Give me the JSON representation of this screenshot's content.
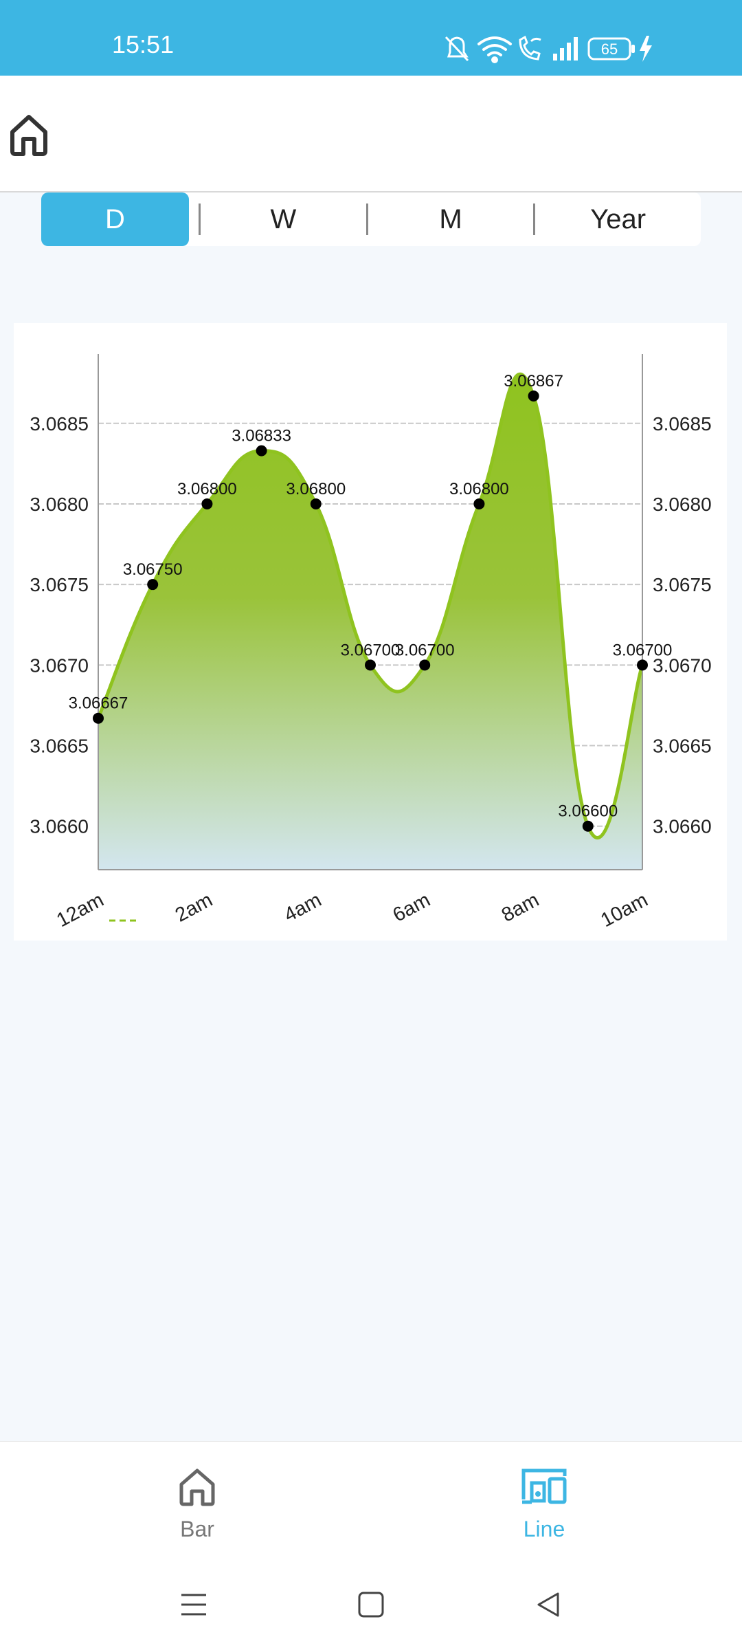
{
  "status_bar": {
    "time": "15:51",
    "battery": "65",
    "icons": [
      "mute-icon",
      "wifi-icon",
      "wifi-call-icon",
      "signal-icon",
      "battery-icon",
      "charging-icon"
    ]
  },
  "app_bar": {
    "icon": "home-icon"
  },
  "range_tabs": [
    {
      "label": "D",
      "active": true
    },
    {
      "label": "W",
      "active": false
    },
    {
      "label": "M",
      "active": false
    },
    {
      "label": "Year",
      "active": false
    }
  ],
  "colors": {
    "accent": "#3db6e3",
    "line": "#8fc31f",
    "fill_top": "#8fc31f",
    "fill_bottom": "#d3e6ef"
  },
  "chart_data": {
    "type": "area",
    "x": [
      "12am",
      "1am",
      "2am",
      "3am",
      "4am",
      "5am",
      "6am",
      "7am",
      "8am",
      "9am",
      "10am"
    ],
    "values": [
      3.06667,
      3.0675,
      3.068,
      3.06833,
      3.068,
      3.067,
      3.067,
      3.068,
      3.06867,
      3.066,
      3.067
    ],
    "data_labels": [
      "3.06667",
      "3.06750",
      "3.06800",
      "3.06833",
      "3.06800",
      "3.06700",
      "3.06700",
      "3.06800",
      "3.06867",
      "3.06600",
      "3.06700"
    ],
    "x_tick_labels": [
      "12am",
      "2am",
      "4am",
      "6am",
      "8am",
      "10am"
    ],
    "y_ticks": [
      "3.0660",
      "3.0665",
      "3.0670",
      "3.0675",
      "3.0680",
      "3.0685"
    ],
    "y_tick_values": [
      3.066,
      3.0665,
      3.067,
      3.0675,
      3.068,
      3.0685
    ],
    "ylim": [
      3.06573,
      3.06893
    ],
    "grid": true,
    "legend": "bottom-left"
  },
  "bottom_nav": [
    {
      "label": "Bar",
      "icon": "home-icon",
      "active": false
    },
    {
      "label": "Line",
      "icon": "devices-icon",
      "active": true
    }
  ],
  "system_nav": [
    "menu-icon",
    "home-square-icon",
    "back-icon"
  ]
}
